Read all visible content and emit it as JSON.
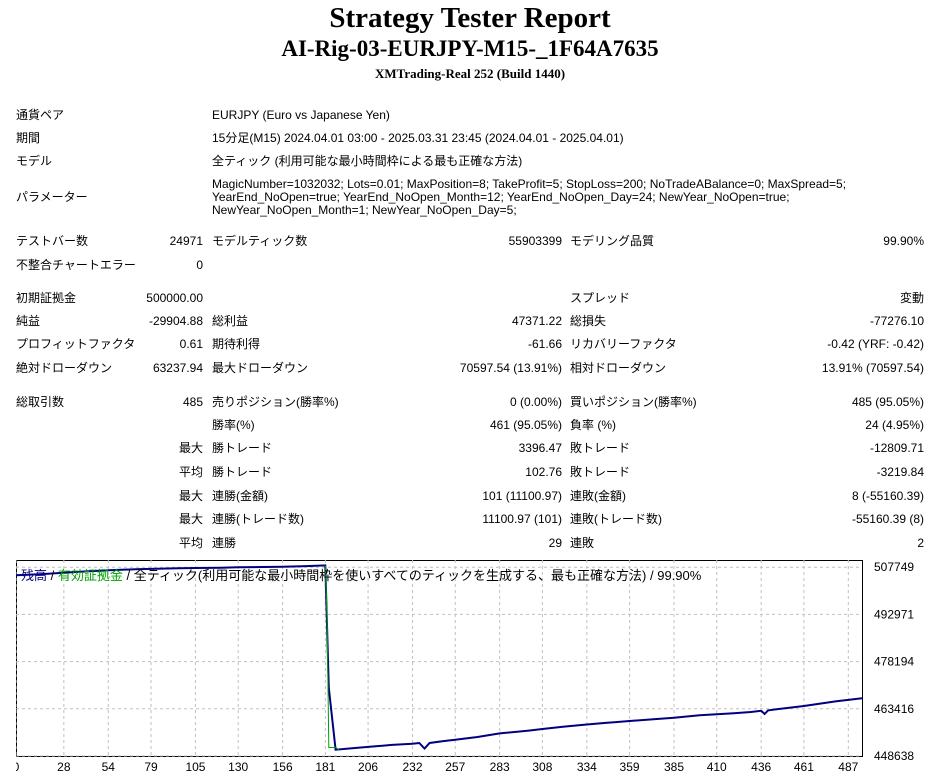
{
  "header": {
    "title": "Strategy Tester Report",
    "subtitle": "AI-Rig-03-EURJPY-M15-_1F64A7635",
    "server": "XMTrading-Real 252 (Build 1440)"
  },
  "info": {
    "symbol_label": "通貨ペア",
    "symbol_value": "EURJPY (Euro vs Japanese Yen)",
    "period_label": "期間",
    "period_value": "15分足(M15) 2024.04.01 03:00 - 2025.03.31 23:45 (2024.04.01 - 2025.04.01)",
    "model_label": "モデル",
    "model_value": "全ティック (利用可能な最小時間枠による最も正確な方法)",
    "params_label": "パラメーター",
    "params_lines": [
      "MagicNumber=1032032; Lots=0.01; MaxPosition=8; TakeProfit=5; StopLoss=200; NoTradeABalance=0; MaxSpread=5;",
      "YearEnd_NoOpen=true; YearEnd_NoOpen_Month=12; YearEnd_NoOpen_Day=24; NewYear_NoOpen=true;",
      "NewYear_NoOpen_Month=1; NewYear_NoOpen_Day=5;"
    ]
  },
  "stats": {
    "bars_label": "テストバー数",
    "bars_value": "24971",
    "ticks_label": "モデルティック数",
    "ticks_value": "55903399",
    "quality_label": "モデリング品質",
    "quality_value": "99.90%",
    "mismatch_label": "不整合チャートエラー",
    "mismatch_value": "0",
    "deposit_label": "初期証拠金",
    "deposit_value": "500000.00",
    "spread_label": "スプレッド",
    "spread_value": "変動",
    "netprofit_label": "純益",
    "netprofit_value": "-29904.88",
    "grossprofit_label": "総利益",
    "grossprofit_value": "47371.22",
    "grossloss_label": "総損失",
    "grossloss_value": "-77276.10",
    "pf_label": "プロフィットファクタ",
    "pf_value": "0.61",
    "expected_label": "期待利得",
    "expected_value": "-61.66",
    "recovery_label": "リカバリーファクタ",
    "recovery_value": "-0.42 (YRF: -0.42)",
    "absdd_label": "絶対ドローダウン",
    "absdd_value": "63237.94",
    "maxdd_label": "最大ドローダウン",
    "maxdd_value": "70597.54 (13.91%)",
    "reldd_label": "相対ドローダウン",
    "reldd_value": "13.91% (70597.54)",
    "trades_label": "総取引数",
    "trades_value": "485",
    "short_label": "売りポジション(勝率%)",
    "short_value": "0 (0.00%)",
    "long_label": "買いポジション(勝率%)",
    "long_value": "485 (95.05%)",
    "win_label": "勝率(%)",
    "win_value": "461 (95.05%)",
    "loss_label": "負率 (%)",
    "loss_value": "24 (4.95%)",
    "max_label": "最大",
    "avg_label": "平均",
    "maxwin_label": "勝トレード",
    "maxwin_value": "3396.47",
    "maxloss_label": "敗トレード",
    "maxloss_value": "-12809.71",
    "avgwin_label": "勝トレード",
    "avgwin_value": "102.76",
    "avgloss_label": "敗トレード",
    "avgloss_value": "-3219.84",
    "maxconswin_label": "連勝(金額)",
    "maxconswin_value": "101 (11100.97)",
    "maxconsloss_label": "連敗(金額)",
    "maxconsloss_value": "8 (-55160.39)",
    "maxconsprofit_label": "連勝(トレード数)",
    "maxconsprofit_value": "11100.97 (101)",
    "maxconslossamt_label": "連敗(トレード数)",
    "maxconslossamt_value": "-55160.39 (8)",
    "avgconswin_label": "連勝",
    "avgconswin_value": "29",
    "avgconsloss_label": "連敗",
    "avgconsloss_value": "2"
  },
  "legend": {
    "balance": "残高",
    "sep": " / ",
    "equity": "有効証拠金",
    "rest": " / 全ティック(利用可能な最小時間枠を使いすべてのティックを生成する、最も正確な方法) / 99.90%"
  },
  "chart_data": {
    "type": "line",
    "x_ticks": [
      "0",
      "28",
      "54",
      "79",
      "105",
      "130",
      "156",
      "181",
      "206",
      "232",
      "257",
      "283",
      "308",
      "334",
      "359",
      "385",
      "410",
      "436",
      "461",
      "487"
    ],
    "y_ticks": [
      "507749",
      "492971",
      "478194",
      "463416",
      "448638"
    ],
    "ylim": [
      448638,
      510000
    ],
    "xlim": [
      0,
      495
    ],
    "colors": {
      "balance": "#000080",
      "equity": "#00a000",
      "grid": "#c0c0c0"
    },
    "series": [
      {
        "name": "残高",
        "x": [
          0,
          15,
          28,
          40,
          54,
          70,
          79,
          95,
          105,
          120,
          130,
          145,
          156,
          170,
          181,
          183,
          187,
          195,
          206,
          220,
          232,
          236,
          239,
          242,
          250,
          257,
          270,
          283,
          300,
          308,
          320,
          334,
          345,
          350,
          359,
          372,
          385,
          400,
          410,
          420,
          430,
          436,
          438,
          440,
          445,
          450,
          455,
          461,
          470,
          480,
          487,
          495
        ],
        "y": [
          505200,
          505600,
          506000,
          506400,
          506800,
          507100,
          507200,
          507400,
          507500,
          507600,
          507700,
          507800,
          507900,
          508100,
          508300,
          470000,
          450600,
          451000,
          451500,
          452100,
          452500,
          452700,
          451000,
          452700,
          453300,
          453700,
          454600,
          455700,
          456600,
          457100,
          457800,
          458500,
          459000,
          459200,
          459600,
          460100,
          460600,
          461400,
          461700,
          462000,
          462400,
          462800,
          461800,
          462900,
          463300,
          463600,
          463900,
          464300,
          465000,
          465800,
          466200,
          466700
        ]
      },
      {
        "name": "有効証拠金",
        "x": [
          181,
          182,
          183,
          187,
          189
        ],
        "y": [
          508300,
          492000,
          451300,
          451300,
          450600
        ]
      }
    ]
  }
}
